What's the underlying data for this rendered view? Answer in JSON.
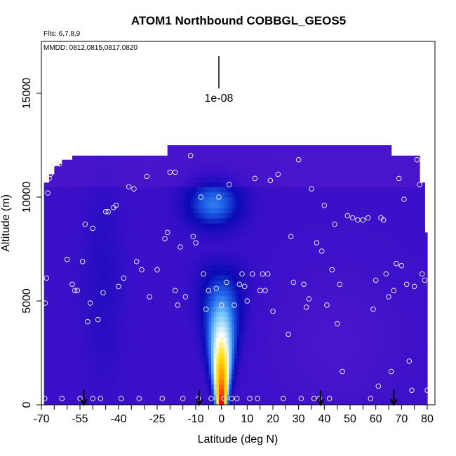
{
  "chart_data": {
    "type": "heatmap",
    "title": "ATOM1 Northbound COBBGL_GEOS5",
    "flights_note": "Flts: 6,7,8,9",
    "dates_note": "MMDD: 0812,0815,0817,0820",
    "xlabel": "Latitude (deg N)",
    "ylabel": "Altitude (m)",
    "xlim": [
      -70,
      83
    ],
    "ylim": [
      0,
      17500
    ],
    "x_ticks": [
      -70,
      -55,
      -40,
      -25,
      -10,
      0,
      10,
      20,
      30,
      40,
      50,
      60,
      70,
      80
    ],
    "y_ticks": [
      0,
      5000,
      10000,
      15000
    ],
    "x_ticks_unlabeled": [
      -65,
      -60,
      -50,
      -45,
      -35,
      -30,
      -20,
      -15,
      -5,
      5,
      15,
      25,
      35,
      45,
      55,
      65,
      75
    ],
    "scale_bar_label": "1e-08",
    "colormap": [
      "#5a1ad0",
      "#3a10c8",
      "#0a0ab4",
      "#1e64e8",
      "#78c8ff",
      "#ffffff",
      "#ffdc00",
      "#ff8c00",
      "#e60000"
    ],
    "peak_latitude": 0,
    "flight_tracks": [
      [
        [
          -68.7,
          300
        ],
        [
          -68.5,
          4900
        ],
        [
          -68,
          6100
        ],
        [
          -67.5,
          10200
        ],
        [
          -67,
          10900
        ],
        [
          -66.5,
          11100
        ],
        [
          -66,
          11400
        ],
        [
          -65,
          11600
        ],
        [
          -63,
          11600
        ],
        [
          -62,
          300
        ],
        [
          -60,
          7000
        ],
        [
          -58,
          5800
        ],
        [
          -57,
          5500
        ],
        [
          -56,
          5500
        ],
        [
          -55,
          300
        ],
        [
          -54,
          6900
        ],
        [
          -53,
          8700
        ],
        [
          -52,
          4000
        ],
        [
          -51,
          4900
        ],
        [
          -50,
          300
        ],
        [
          -50,
          8500
        ],
        [
          -48,
          4100
        ],
        [
          -47,
          300
        ],
        [
          -46,
          5400
        ],
        [
          -45,
          9300
        ],
        [
          -44,
          9300
        ],
        [
          -42,
          9500
        ],
        [
          -41,
          9600
        ],
        [
          -40,
          5700
        ],
        [
          -39,
          300
        ],
        [
          -38,
          6100
        ],
        [
          -36,
          10500
        ],
        [
          -34,
          10400
        ],
        [
          -33,
          6900
        ],
        [
          -32,
          300
        ],
        [
          -31,
          6500
        ],
        [
          -29,
          11000
        ],
        [
          -28,
          5200
        ],
        [
          -25,
          6500
        ],
        [
          -23,
          300
        ],
        [
          -22,
          8000
        ],
        [
          -21,
          8300
        ],
        [
          -20,
          11200
        ],
        [
          -18,
          5500
        ],
        [
          -18,
          11200
        ],
        [
          -17,
          4800
        ],
        [
          -16,
          7600
        ],
        [
          -15,
          300
        ],
        [
          -14,
          5200
        ],
        [
          -12,
          12000
        ],
        [
          -11,
          8100
        ],
        [
          -10,
          7800
        ],
        [
          -9,
          300
        ],
        [
          -8,
          10000
        ],
        [
          -7,
          6300
        ],
        [
          -6,
          4600
        ],
        [
          -5,
          5500
        ],
        [
          -4,
          300
        ],
        [
          -2,
          5600
        ],
        [
          -1,
          10000
        ],
        [
          0,
          4800
        ],
        [
          1,
          300
        ],
        [
          2,
          5900
        ],
        [
          3,
          10600
        ],
        [
          4,
          300
        ],
        [
          5,
          4800
        ],
        [
          6,
          300
        ],
        [
          7,
          5800
        ],
        [
          8,
          6300
        ],
        [
          9,
          5700
        ],
        [
          10,
          5000
        ],
        [
          11,
          300
        ],
        [
          12,
          6300
        ],
        [
          13,
          10900
        ],
        [
          14,
          300
        ],
        [
          15,
          5500
        ],
        [
          16,
          6300
        ],
        [
          17,
          5500
        ],
        [
          18,
          6300
        ],
        [
          19,
          10800
        ],
        [
          20,
          4500
        ],
        [
          22,
          11100
        ],
        [
          24,
          300
        ],
        [
          26,
          3400
        ],
        [
          27,
          8100
        ],
        [
          28,
          5900
        ],
        [
          30,
          11800
        ],
        [
          31,
          300
        ],
        [
          32,
          5800
        ],
        [
          33,
          4700
        ],
        [
          34,
          5100
        ],
        [
          35,
          10400
        ],
        [
          36,
          300
        ],
        [
          37,
          7800
        ],
        [
          38,
          300
        ],
        [
          39,
          7400
        ],
        [
          40,
          9600
        ],
        [
          41,
          4800
        ],
        [
          42,
          300
        ],
        [
          43,
          6500
        ],
        [
          44,
          8700
        ],
        [
          45,
          3900
        ],
        [
          46,
          5800
        ],
        [
          47,
          1600
        ],
        [
          49,
          9100
        ],
        [
          51,
          9000
        ],
        [
          53,
          8900
        ],
        [
          55,
          8900
        ],
        [
          57,
          9000
        ],
        [
          58,
          300
        ],
        [
          59,
          4600
        ],
        [
          60,
          6000
        ],
        [
          61,
          900
        ],
        [
          62,
          9000
        ],
        [
          63,
          8900
        ],
        [
          64,
          6300
        ],
        [
          65,
          5200
        ],
        [
          66,
          1600
        ],
        [
          67,
          5500
        ],
        [
          68,
          6800
        ],
        [
          69,
          10900
        ],
        [
          70,
          6700
        ],
        [
          71,
          9900
        ],
        [
          72,
          5800
        ],
        [
          73,
          2100
        ],
        [
          74,
          700
        ],
        [
          75,
          5700
        ],
        [
          76,
          11800
        ],
        [
          77,
          10600
        ],
        [
          78,
          6300
        ],
        [
          79,
          6000
        ],
        [
          80,
          700
        ]
      ]
    ],
    "arrow_latitudes": [
      -53.5,
      -8.7,
      38.5,
      67
    ]
  }
}
